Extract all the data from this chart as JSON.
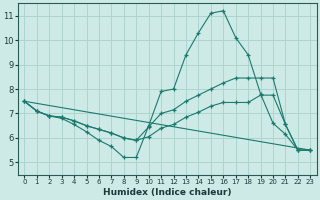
{
  "xlabel": "Humidex (Indice chaleur)",
  "background_color": "#ceeae7",
  "grid_color": "#aed4d0",
  "line_color": "#1a7a6e",
  "xlim": [
    -0.5,
    23.5
  ],
  "ylim": [
    4.5,
    11.5
  ],
  "xticks": [
    0,
    1,
    2,
    3,
    4,
    5,
    6,
    7,
    8,
    9,
    10,
    11,
    12,
    13,
    14,
    15,
    16,
    17,
    18,
    19,
    20,
    21,
    22,
    23
  ],
  "yticks": [
    5,
    6,
    7,
    8,
    9,
    10,
    11
  ],
  "curve1_x": [
    0,
    1,
    2,
    3,
    4,
    5,
    6,
    7,
    8,
    9,
    10,
    11,
    12,
    13,
    14,
    15,
    16,
    17,
    18,
    19,
    20,
    21,
    22,
    23
  ],
  "curve1_y": [
    7.5,
    7.1,
    6.9,
    6.8,
    6.55,
    6.25,
    5.9,
    5.65,
    5.2,
    5.2,
    6.5,
    7.9,
    8.0,
    9.4,
    10.3,
    11.1,
    11.2,
    10.1,
    9.4,
    7.8,
    6.6,
    6.15,
    5.5,
    5.5
  ],
  "curve2_x": [
    0,
    1,
    2,
    3,
    4,
    5,
    6,
    7,
    8,
    9,
    10,
    11,
    12,
    13,
    14,
    15,
    16,
    17,
    18,
    19,
    20,
    21,
    22,
    23
  ],
  "curve2_y": [
    7.5,
    7.1,
    6.9,
    6.85,
    6.7,
    6.5,
    6.35,
    6.2,
    6.0,
    5.9,
    6.45,
    7.0,
    7.15,
    7.5,
    7.75,
    8.0,
    8.25,
    8.45,
    8.45,
    8.45,
    8.45,
    6.55,
    5.5,
    5.5
  ],
  "curve3_x": [
    0,
    1,
    2,
    3,
    4,
    5,
    6,
    7,
    8,
    9,
    10,
    11,
    12,
    13,
    14,
    15,
    16,
    17,
    18,
    19,
    20,
    21,
    22,
    23
  ],
  "curve3_y": [
    7.5,
    7.1,
    6.9,
    6.85,
    6.7,
    6.5,
    6.35,
    6.2,
    6.0,
    5.9,
    6.05,
    6.4,
    6.55,
    6.85,
    7.05,
    7.3,
    7.45,
    7.45,
    7.45,
    7.75,
    7.75,
    6.55,
    5.5,
    5.5
  ],
  "curve4_x": [
    0,
    23
  ],
  "curve4_y": [
    7.5,
    5.5
  ]
}
